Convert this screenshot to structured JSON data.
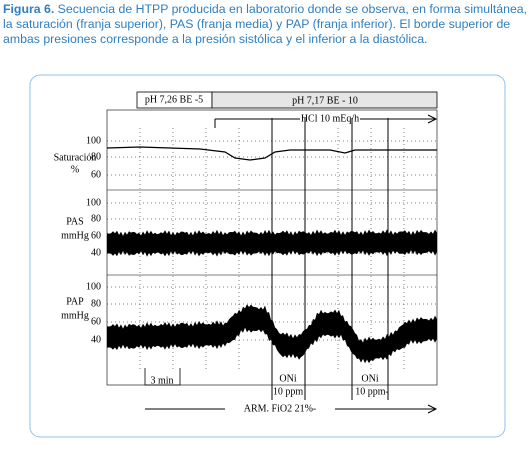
{
  "caption": {
    "label": "Figura 6.",
    "text": "Secuencia de HTPP producida en laboratorio donde se observa, en forma simultánea, la saturación (franja superior), PAS (franja media) y PAP (franja inferior). El borde superior de ambas presiones corresponde a la presión sistólica y el inferior a la diastólica."
  },
  "figure": {
    "header": [
      "pH 7,26 BE -5",
      "pH 7,17 BE - 10"
    ],
    "infusion": "HCl 10 mEq/h",
    "panels": [
      {
        "label": [
          "Saturación",
          "%"
        ],
        "ticks": [
          "100",
          "80",
          "60"
        ]
      },
      {
        "label": [
          "PAS",
          "mmHg"
        ],
        "ticks": [
          "100",
          "80",
          "60",
          "40"
        ]
      },
      {
        "label": [
          "PAP",
          "mmHg"
        ],
        "ticks": [
          "100",
          "80",
          "60",
          "40"
        ]
      }
    ],
    "time_scale": "3 min",
    "events": [
      {
        "label": "ONi",
        "dose": "10 ppm"
      },
      {
        "label": "ONi",
        "dose": "10 ppm-"
      }
    ],
    "ventilation": "ARM. FiO2 21%-"
  }
}
